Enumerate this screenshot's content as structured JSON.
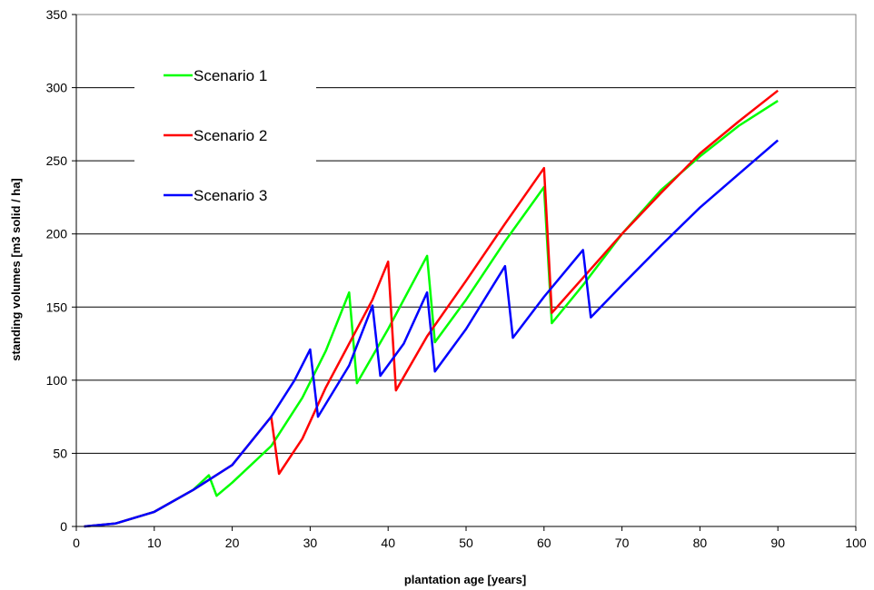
{
  "chart_data": {
    "type": "line",
    "title": "",
    "xlabel": "plantation age [years]",
    "ylabel": "standing volumes [m3 solid / ha]",
    "xlim": [
      0,
      100
    ],
    "ylim": [
      0,
      350
    ],
    "xticks": [
      0,
      10,
      20,
      30,
      40,
      50,
      60,
      70,
      80,
      90,
      100
    ],
    "yticks": [
      0,
      50,
      100,
      150,
      200,
      250,
      300,
      350
    ],
    "grid": "horizontal",
    "legend_position": "upper-left",
    "series": [
      {
        "name": "Scenario 1",
        "color": "#00ff00",
        "points": [
          [
            1,
            0
          ],
          [
            5,
            2
          ],
          [
            10,
            10
          ],
          [
            15,
            25
          ],
          [
            17,
            35
          ],
          [
            18,
            21
          ],
          [
            20,
            30
          ],
          [
            25,
            55
          ],
          [
            29,
            88
          ],
          [
            32,
            120
          ],
          [
            35,
            160
          ],
          [
            36,
            98
          ],
          [
            40,
            135
          ],
          [
            45,
            185
          ],
          [
            46,
            126
          ],
          [
            50,
            155
          ],
          [
            55,
            195
          ],
          [
            60,
            232
          ],
          [
            61,
            139
          ],
          [
            65,
            165
          ],
          [
            70,
            200
          ],
          [
            75,
            230
          ],
          [
            80,
            253
          ],
          [
            85,
            274
          ],
          [
            90,
            291
          ]
        ]
      },
      {
        "name": "Scenario 2",
        "color": "#ff0000",
        "points": [
          [
            1,
            0
          ],
          [
            5,
            2
          ],
          [
            10,
            10
          ],
          [
            15,
            25
          ],
          [
            20,
            42
          ],
          [
            25,
            75
          ],
          [
            26,
            36
          ],
          [
            29,
            60
          ],
          [
            32,
            95
          ],
          [
            35,
            125
          ],
          [
            38,
            155
          ],
          [
            40,
            181
          ],
          [
            41,
            93
          ],
          [
            45,
            130
          ],
          [
            50,
            168
          ],
          [
            55,
            207
          ],
          [
            60,
            245
          ],
          [
            61,
            146
          ],
          [
            65,
            170
          ],
          [
            70,
            200
          ],
          [
            75,
            228
          ],
          [
            80,
            255
          ],
          [
            85,
            277
          ],
          [
            90,
            298
          ]
        ]
      },
      {
        "name": "Scenario 3",
        "color": "#0000ff",
        "points": [
          [
            1,
            0
          ],
          [
            5,
            2
          ],
          [
            10,
            10
          ],
          [
            15,
            25
          ],
          [
            20,
            42
          ],
          [
            25,
            75
          ],
          [
            28,
            100
          ],
          [
            30,
            121
          ],
          [
            31,
            75
          ],
          [
            35,
            110
          ],
          [
            38,
            151
          ],
          [
            39,
            103
          ],
          [
            42,
            125
          ],
          [
            45,
            160
          ],
          [
            46,
            106
          ],
          [
            50,
            135
          ],
          [
            55,
            178
          ],
          [
            56,
            129
          ],
          [
            60,
            157
          ],
          [
            65,
            189
          ],
          [
            66,
            143
          ],
          [
            70,
            165
          ],
          [
            75,
            192
          ],
          [
            80,
            218
          ],
          [
            85,
            241
          ],
          [
            90,
            264
          ]
        ]
      }
    ]
  }
}
